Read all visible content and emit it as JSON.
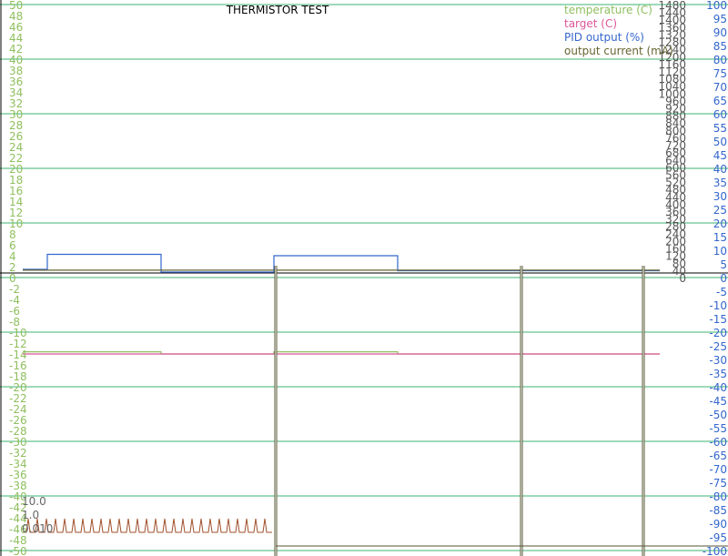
{
  "chart_data": {
    "type": "line",
    "title": "THERMISTOR TEST",
    "grid": true,
    "legend_position": "top-right",
    "axes": {
      "left": {
        "range": [
          -50,
          50
        ],
        "ticks": [
          "50",
          "48",
          "46",
          "44",
          "42",
          "40",
          "38",
          "36",
          "34",
          "32",
          "30",
          "28",
          "26",
          "24",
          "22",
          "20",
          "18",
          "16",
          "14",
          "12",
          "10",
          "8",
          "6",
          "4",
          "2",
          "0",
          "-2",
          "-4",
          "-6",
          "-8",
          "-10",
          "-12",
          "-14",
          "-16",
          "-18",
          "-20",
          "-22",
          "-24",
          "-26",
          "-28",
          "-30",
          "-32",
          "-34",
          "-36",
          "-38",
          "-40",
          "-42",
          "-44",
          "-46",
          "-48",
          "-50"
        ],
        "color": "#8fbf5f"
      },
      "current": {
        "range": [
          0,
          1480
        ],
        "ticks": [
          "1480",
          "1440",
          "1400",
          "1360",
          "1320",
          "1280",
          "1240",
          "1200",
          "1160",
          "1120",
          "1080",
          "1040",
          "1000",
          "960",
          "920",
          "880",
          "840",
          "800",
          "760",
          "720",
          "680",
          "640",
          "600",
          "560",
          "520",
          "480",
          "440",
          "400",
          "360",
          "320",
          "280",
          "240",
          "200",
          "160",
          "120",
          "80",
          "40",
          "0"
        ],
        "color": "#555555"
      },
      "right": {
        "range": [
          -100,
          100
        ],
        "ticks": [
          "100",
          "95",
          "90",
          "85",
          "80",
          "75",
          "70",
          "65",
          "60",
          "55",
          "50",
          "45",
          "40",
          "35",
          "30",
          "25",
          "20",
          "15",
          "10",
          "5",
          "0",
          "-5",
          "-10",
          "-15",
          "-20",
          "-25",
          "-30",
          "-35",
          "-40",
          "-45",
          "-50",
          "-55",
          "-60",
          "-65",
          "-70",
          "-75",
          "-80",
          "-85",
          "-90",
          "-95",
          "-100"
        ],
        "color": "#3366cc"
      },
      "log": {
        "ticks": [
          "10.0",
          "1.0",
          "0.010"
        ],
        "color": "#666666"
      }
    },
    "series": [
      {
        "name": "temperature (C)",
        "color": "#8fbf5f",
        "segments": [
          {
            "x": [
              0,
              27,
              27,
              152,
              152,
              276,
              276,
              412,
              412,
              700
            ],
            "y": [
              -13.6,
              -13.6,
              -13.6,
              -13.6,
              -14.0,
              -14.0,
              -13.6,
              -13.6,
              -14.0,
              -14.0
            ]
          }
        ]
      },
      {
        "name": "target (C)",
        "color": "#dd5599",
        "segments": [
          {
            "x": [
              0,
              700
            ],
            "y": [
              -14.0,
              -14.0
            ]
          }
        ]
      },
      {
        "name": "PID output (%)",
        "color": "#3366cc",
        "segments": [
          {
            "x": [
              0,
              27,
              27,
              152,
              152,
              276,
              276,
              412,
              412,
              700
            ],
            "y": [
              3,
              3,
              8.5,
              8.5,
              2,
              2,
              8,
              8,
              2.5,
              2.5
            ]
          }
        ]
      },
      {
        "name": "output current (mA)",
        "color": "#666633",
        "segments": [
          {
            "x": [
              0,
              700
            ],
            "y": [
              40,
              40
            ]
          }
        ]
      }
    ]
  }
}
